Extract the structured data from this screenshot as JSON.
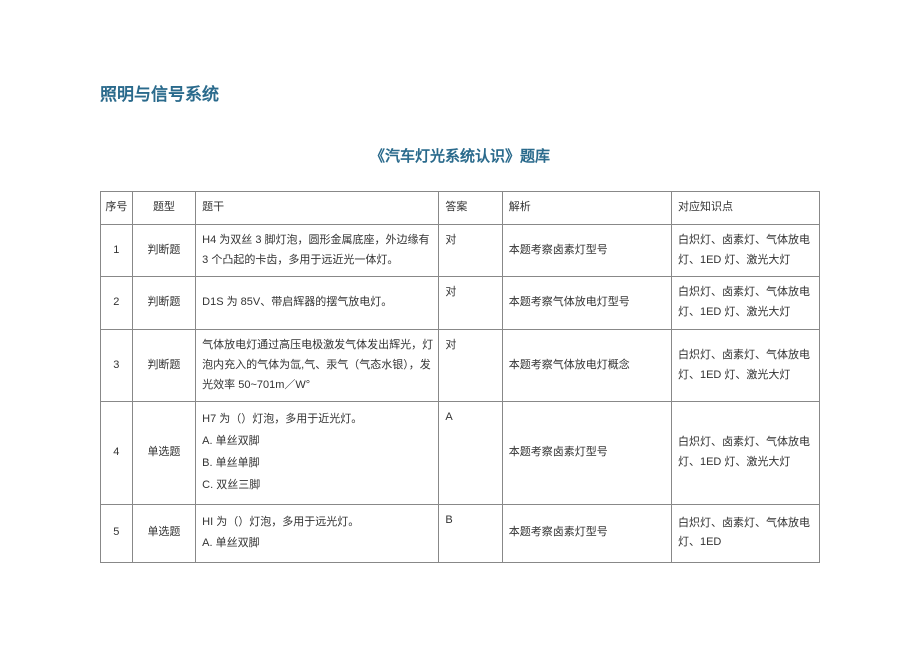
{
  "page": {
    "main_title": "照明与信号系统",
    "sub_title": "《汽车灯光系统认识》题库",
    "colors": {
      "title_color": "#2a6a8c",
      "border_color": "#888",
      "text_color": "#333",
      "background": "#ffffff"
    },
    "typography": {
      "main_title_fontsize": 17,
      "sub_title_fontsize": 15,
      "cell_fontsize": 11
    }
  },
  "table": {
    "columns": [
      "序号",
      "题型",
      "题干",
      "答案",
      "解析",
      "对应知识点"
    ],
    "rows": [
      {
        "seq": "1",
        "type": "判断题",
        "stem": "H4 为双丝 3 脚灯泡，圆形金属底座，外边缘有 3 个凸起的卡齿，多用于远近光一体灯。",
        "answer": "对",
        "explanation": "本题考察卤素灯型号",
        "knowledge": "白炽灯、卤素灯、气体放电灯、1ED 灯、激光大灯"
      },
      {
        "seq": "2",
        "type": "判断题",
        "stem": "D1S 为 85V、带启辉器的摆气放电灯。",
        "answer": "对",
        "explanation": "本题考察气体放电灯型号",
        "knowledge": "白炽灯、卤素灯、气体放电灯、1ED 灯、激光大灯"
      },
      {
        "seq": "3",
        "type": "判断题",
        "stem": "气体放电灯通过高压电极激发气体发出辉光，灯泡内充入的气体为氙,气、汞气（气态水银），发光效率 50~701m／W°",
        "answer": "对",
        "explanation": "本题考察气体放电灯概念",
        "knowledge": "白炽灯、卤素灯、气体放电灯、1ED 灯、激光大灯"
      },
      {
        "seq": "4",
        "type": "单选题",
        "stem_lines": [
          "H7 为（）灯泡，多用于近光灯。",
          "A. 单丝双脚",
          "B. 单丝单脚",
          "C. 双丝三脚"
        ],
        "answer": "A",
        "explanation": "本题考察卤素灯型号",
        "knowledge": "白炽灯、卤素灯、气体放电灯、1ED 灯、激光大灯"
      },
      {
        "seq": "5",
        "type": "单选题",
        "stem_lines": [
          "HI 为（）灯泡，多用于远光灯。",
          "A. 单丝双脚"
        ],
        "answer": "B",
        "explanation": "本题考察卤素灯型号",
        "knowledge": "白炽灯、卤素灯、气体放电灯、1ED"
      }
    ]
  }
}
